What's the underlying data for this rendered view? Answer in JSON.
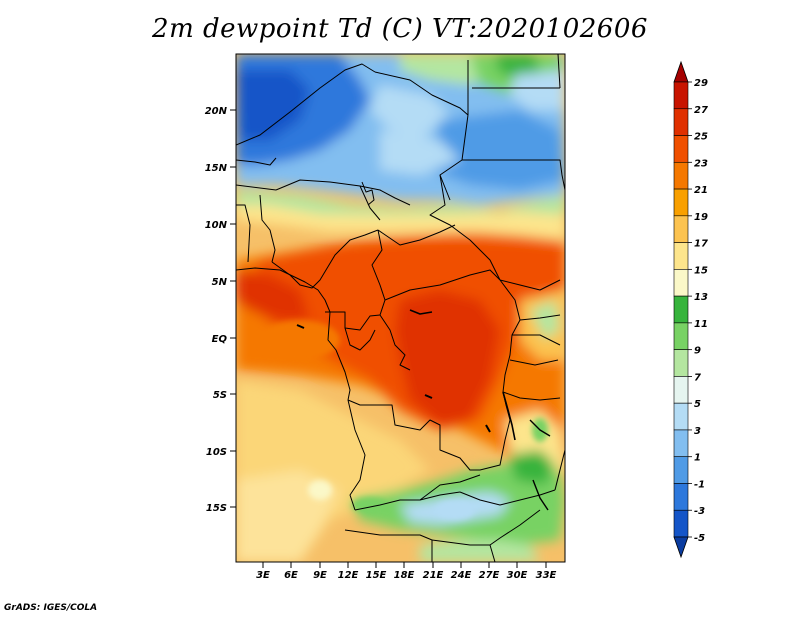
{
  "title": "2m dewpoint Td (C) VT:2020102606",
  "credit": "GrADS: IGES/COLA",
  "map": {
    "lat_labels": [
      "20N",
      "15N",
      "10N",
      "5N",
      "EQ",
      "5S",
      "10S",
      "15S"
    ],
    "lon_labels": [
      "3E",
      "6E",
      "9E",
      "12E",
      "15E",
      "18E",
      "21E",
      "24E",
      "27E",
      "30E",
      "33E"
    ]
  },
  "colorbar": {
    "labels": [
      "29",
      "27",
      "25",
      "23",
      "21",
      "19",
      "17",
      "15",
      "13",
      "11",
      "9",
      "7",
      "5",
      "3",
      "1",
      "-1",
      "-3",
      "-5"
    ],
    "colors": [
      "#a50000",
      "#c81400",
      "#e03000",
      "#f05000",
      "#f57800",
      "#f9a000",
      "#fcc350",
      "#fde58c",
      "#fbf8c8",
      "#37b43c",
      "#78d264",
      "#b4e6a0",
      "#e6f5f0",
      "#b4dcf5",
      "#82bef0",
      "#509be6",
      "#2d78dc",
      "#1455c8",
      "#0a3ca0"
    ]
  },
  "chart_data": {
    "type": "heatmap",
    "title": "2m dewpoint Td (C) VT:2020102606",
    "x_ticks": [
      "3E",
      "6E",
      "9E",
      "12E",
      "15E",
      "18E",
      "21E",
      "24E",
      "27E",
      "30E",
      "33E"
    ],
    "y_ticks": [
      "20N",
      "15N",
      "10N",
      "5N",
      "EQ",
      "5S",
      "10S",
      "15S"
    ],
    "color_levels": [
      -5,
      -3,
      -1,
      1,
      3,
      5,
      7,
      9,
      11,
      13,
      15,
      17,
      19,
      21,
      23,
      25,
      27,
      29
    ]
  }
}
